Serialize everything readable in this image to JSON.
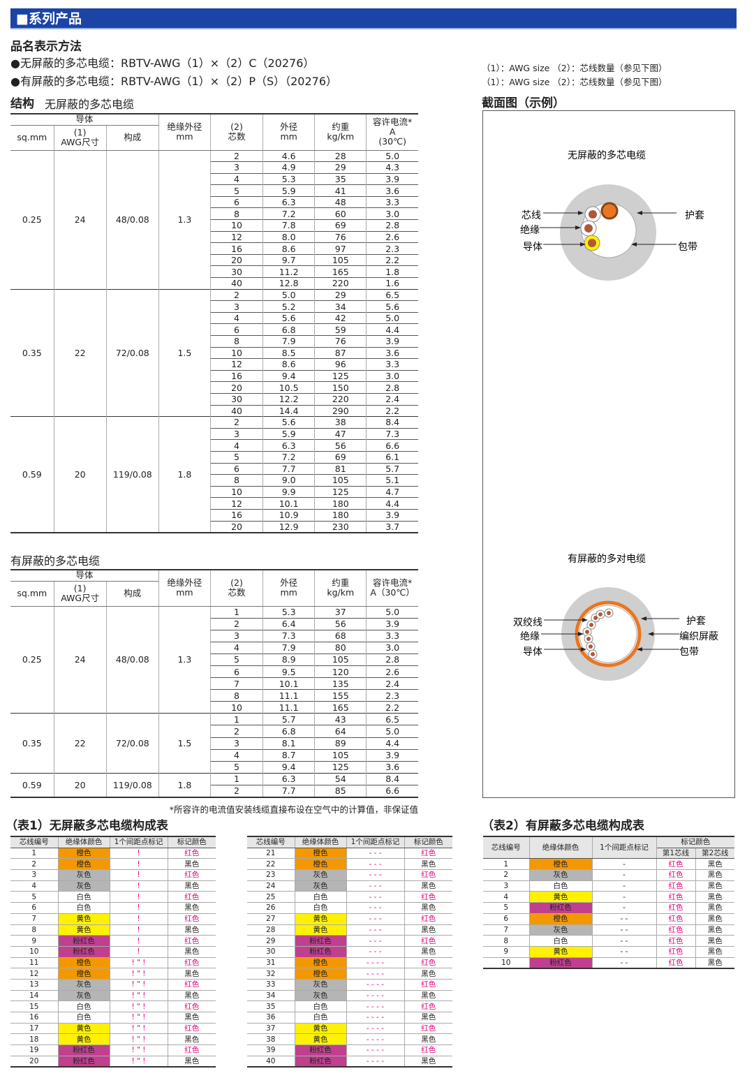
{
  "header": {
    "title": "■系列产品"
  },
  "naming": {
    "title": "品名表示方法",
    "lines": [
      "●无屏蔽的多芯电缆：RBTV-AWG（1）×（2）C（20276）",
      "●有屏蔽的多芯电缆：RBTV-AWG（1）×（2）P（S）（20276）"
    ],
    "notes": [
      "（1）：AWG size （2）：芯线数量（参见下图）",
      "（1）：AWG size （2）：芯线数量（参见下图）"
    ]
  },
  "structure": {
    "title": "结构",
    "tables": [
      {
        "caption": "无屏蔽的多芯电缆",
        "header": {
          "group": "导体",
          "cols": [
            [
              "sq.mm"
            ],
            [
              "(1)",
              "AWG尺寸"
            ],
            [
              "构成"
            ],
            [
              "绝缘外径",
              "mm"
            ],
            [
              "(2)",
              "芯数"
            ],
            [
              "外径",
              "mm"
            ],
            [
              "约重",
              "kg/km"
            ],
            [
              "容许电流*",
              "A",
              "(30℃)"
            ]
          ]
        },
        "groups": [
          {
            "sq_mm": "0.25",
            "awg": "24",
            "composition": "48/0.08",
            "insulation_od": "1.3",
            "rows": [
              [
                "2",
                "4.6",
                "28",
                "5.0"
              ],
              [
                "3",
                "4.9",
                "29",
                "4.3"
              ],
              [
                "4",
                "5.3",
                "35",
                "3.9"
              ],
              [
                "5",
                "5.9",
                "41",
                "3.6"
              ],
              [
                "6",
                "6.3",
                "48",
                "3.3"
              ],
              [
                "8",
                "7.2",
                "60",
                "3.0"
              ],
              [
                "10",
                "7.8",
                "69",
                "2.8"
              ],
              [
                "12",
                "8.0",
                "76",
                "2.6"
              ],
              [
                "16",
                "8.6",
                "97",
                "2.3"
              ],
              [
                "20",
                "9.7",
                "105",
                "2.2"
              ],
              [
                "30",
                "11.2",
                "165",
                "1.8"
              ],
              [
                "40",
                "12.8",
                "220",
                "1.6"
              ]
            ]
          },
          {
            "sq_mm": "0.35",
            "awg": "22",
            "composition": "72/0.08",
            "insulation_od": "1.5",
            "rows": [
              [
                "2",
                "5.0",
                "29",
                "6.5"
              ],
              [
                "3",
                "5.2",
                "34",
                "5.6"
              ],
              [
                "4",
                "5.6",
                "42",
                "5.0"
              ],
              [
                "6",
                "6.8",
                "59",
                "4.4"
              ],
              [
                "8",
                "7.9",
                "76",
                "3.9"
              ],
              [
                "10",
                "8.5",
                "87",
                "3.6"
              ],
              [
                "12",
                "8.6",
                "96",
                "3.3"
              ],
              [
                "16",
                "9.4",
                "125",
                "3.0"
              ],
              [
                "20",
                "10.5",
                "150",
                "2.8"
              ],
              [
                "30",
                "12.2",
                "220",
                "2.4"
              ],
              [
                "40",
                "14.4",
                "290",
                "2.2"
              ]
            ]
          },
          {
            "sq_mm": "0.59",
            "awg": "20",
            "composition": "119/0.08",
            "insulation_od": "1.8",
            "rows": [
              [
                "2",
                "5.6",
                "38",
                "8.4"
              ],
              [
                "3",
                "5.9",
                "47",
                "7.3"
              ],
              [
                "4",
                "6.3",
                "56",
                "6.6"
              ],
              [
                "5",
                "7.2",
                "69",
                "6.1"
              ],
              [
                "6",
                "7.7",
                "81",
                "5.7"
              ],
              [
                "8",
                "9.0",
                "105",
                "5.1"
              ],
              [
                "10",
                "9.9",
                "125",
                "4.7"
              ],
              [
                "12",
                "10.1",
                "180",
                "4.4"
              ],
              [
                "16",
                "10.9",
                "180",
                "3.9"
              ],
              [
                "20",
                "12.9",
                "230",
                "3.7"
              ]
            ]
          }
        ]
      },
      {
        "caption": "有屏蔽的多芯电缆",
        "header": {
          "group": "导体",
          "cols": [
            [
              "sq.mm"
            ],
            [
              "(1)",
              "AWG尺寸"
            ],
            [
              "构成"
            ],
            [
              "绝缘外径",
              "mm"
            ],
            [
              "(2)",
              "芯数"
            ],
            [
              "外径",
              "mm"
            ],
            [
              "约重",
              "kg/km"
            ],
            [
              "容许电流*",
              "A（30℃）"
            ]
          ]
        },
        "groups": [
          {
            "sq_mm": "0.25",
            "awg": "24",
            "composition": "48/0.08",
            "insulation_od": "1.3",
            "rows": [
              [
                "1",
                "5.3",
                "37",
                "5.0"
              ],
              [
                "2",
                "6.4",
                "56",
                "3.9"
              ],
              [
                "3",
                "7.3",
                "68",
                "3.3"
              ],
              [
                "4",
                "7.9",
                "80",
                "3.0"
              ],
              [
                "5",
                "8.9",
                "105",
                "2.8"
              ],
              [
                "6",
                "9.5",
                "120",
                "2.6"
              ],
              [
                "7",
                "10.1",
                "135",
                "2.4"
              ],
              [
                "8",
                "11.1",
                "155",
                "2.3"
              ],
              [
                "10",
                "11.1",
                "165",
                "2.2"
              ]
            ]
          },
          {
            "sq_mm": "0.35",
            "awg": "22",
            "composition": "72/0.08",
            "insulation_od": "1.5",
            "rows": [
              [
                "1",
                "5.7",
                "43",
                "6.5"
              ],
              [
                "2",
                "6.8",
                "64",
                "5.0"
              ],
              [
                "3",
                "8.1",
                "89",
                "4.4"
              ],
              [
                "4",
                "8.7",
                "105",
                "3.9"
              ],
              [
                "5",
                "9.4",
                "125",
                "3.6"
              ]
            ]
          },
          {
            "sq_mm": "0.59",
            "awg": "20",
            "composition": "119/0.08",
            "insulation_od": "1.8",
            "rows": [
              [
                "1",
                "6.3",
                "54",
                "8.4"
              ],
              [
                "2",
                "7.7",
                "85",
                "6.6"
              ]
            ]
          }
        ]
      }
    ],
    "footnote": "*所容许的电流值安装线缆直接布设在空气中的计算值，非保证值"
  },
  "section": {
    "title": "截面图（示例）",
    "diagrams": [
      {
        "title": "无屏蔽的多芯电缆",
        "left_labels": [
          "芯线",
          "绝缘",
          "导体"
        ],
        "right_labels": [
          "护套",
          "包带"
        ]
      },
      {
        "title": "有屏蔽的多对电缆",
        "left_labels": [
          "双绞线",
          "绝缘",
          "导体"
        ],
        "right_labels": [
          "护套",
          "编织屏蔽",
          "包带"
        ]
      }
    ]
  },
  "color_tables": {
    "red": "#e4007f",
    "insulation_fills": [
      "#f39800",
      "#f39800",
      "#b5b5b5",
      "#b5b5b5",
      "#ffffff",
      "#ffffff",
      "#fff100",
      "#fff100",
      "#c0408f",
      "#c0408f"
    ],
    "table1": {
      "title": "（表1）无屏蔽多芯电缆构成表",
      "columns": [
        "芯线编号",
        "绝缘体颜色",
        "1个间距点标记",
        "标记颜色"
      ],
      "rows": [
        [
          "1",
          "橙色",
          "!",
          "红色"
        ],
        [
          "2",
          "橙色",
          "!",
          "黑色"
        ],
        [
          "3",
          "灰色",
          "!",
          "红色"
        ],
        [
          "4",
          "灰色",
          "!",
          "黑色"
        ],
        [
          "5",
          "白色",
          "!",
          "红色"
        ],
        [
          "6",
          "白色",
          "!",
          "黑色"
        ],
        [
          "7",
          "黄色",
          "!",
          "红色"
        ],
        [
          "8",
          "黄色",
          "!",
          "黑色"
        ],
        [
          "9",
          "粉红色",
          "!",
          "红色"
        ],
        [
          "10",
          "粉红色",
          "!",
          "黑色"
        ],
        [
          "11",
          "橙色",
          "! \" !",
          "红色"
        ],
        [
          "12",
          "橙色",
          "! \" !",
          "黑色"
        ],
        [
          "13",
          "灰色",
          "! \" !",
          "红色"
        ],
        [
          "14",
          "灰色",
          "! \" !",
          "黑色"
        ],
        [
          "15",
          "白色",
          "! \" !",
          "红色"
        ],
        [
          "16",
          "白色",
          "! \" !",
          "黑色"
        ],
        [
          "17",
          "黄色",
          "! \" !",
          "红色"
        ],
        [
          "18",
          "黄色",
          "! \" !",
          "黑色"
        ],
        [
          "19",
          "粉红色",
          "! \" !",
          "红色"
        ],
        [
          "20",
          "粉红色",
          "! \" !",
          "黑色"
        ],
        [
          "21",
          "橙色",
          "- - -",
          "红色"
        ],
        [
          "22",
          "橙色",
          "- - -",
          "黑色"
        ],
        [
          "23",
          "灰色",
          "- - -",
          "红色"
        ],
        [
          "24",
          "灰色",
          "- - -",
          "黑色"
        ],
        [
          "25",
          "白色",
          "- - -",
          "红色"
        ],
        [
          "26",
          "白色",
          "- - -",
          "黑色"
        ],
        [
          "27",
          "黄色",
          "- - -",
          "红色"
        ],
        [
          "28",
          "黄色",
          "- - -",
          "黑色"
        ],
        [
          "29",
          "粉红色",
          "- - -",
          "红色"
        ],
        [
          "30",
          "粉红色",
          "- - -",
          "黑色"
        ],
        [
          "31",
          "橙色",
          "- - - -",
          "红色"
        ],
        [
          "32",
          "橙色",
          "- - - -",
          "黑色"
        ],
        [
          "33",
          "灰色",
          "- - - -",
          "红色"
        ],
        [
          "34",
          "灰色",
          "- - - -",
          "黑色"
        ],
        [
          "35",
          "白色",
          "- - - -",
          "红色"
        ],
        [
          "36",
          "白色",
          "- - - -",
          "黑色"
        ],
        [
          "37",
          "黄色",
          "- - - -",
          "红色"
        ],
        [
          "38",
          "黄色",
          "- - - -",
          "黑色"
        ],
        [
          "39",
          "粉红色",
          "- - - -",
          "红色"
        ],
        [
          "40",
          "粉红色",
          "- - - -",
          "黑色"
        ]
      ]
    },
    "table2": {
      "title": "（表2）有屏蔽多芯电缆构成表",
      "columns": [
        "芯线编号",
        "绝缘体颜色",
        "1个间距点标记"
      ],
      "mark_group": "标记颜色",
      "mark_cols": [
        "第1芯线",
        "第2芯线"
      ],
      "fills": [
        "#f39800",
        "#b5b5b5",
        "#ffffff",
        "#fff100",
        "#c0408f"
      ],
      "rows": [
        [
          "1",
          "橙色",
          "-",
          "红色",
          "黑色"
        ],
        [
          "2",
          "灰色",
          "-",
          "红色",
          "黑色"
        ],
        [
          "3",
          "白色",
          "-",
          "红色",
          "黑色"
        ],
        [
          "4",
          "黄色",
          "-",
          "红色",
          "黑色"
        ],
        [
          "5",
          "粉红色",
          "-",
          "红色",
          "黑色"
        ],
        [
          "6",
          "橙色",
          "- -",
          "红色",
          "黑色"
        ],
        [
          "7",
          "灰色",
          "- -",
          "红色",
          "黑色"
        ],
        [
          "8",
          "白色",
          "- -",
          "红色",
          "黑色"
        ],
        [
          "9",
          "黄色",
          "- -",
          "红色",
          "黑色"
        ],
        [
          "10",
          "粉红色",
          "- -",
          "红色",
          "黑色"
        ]
      ]
    }
  }
}
